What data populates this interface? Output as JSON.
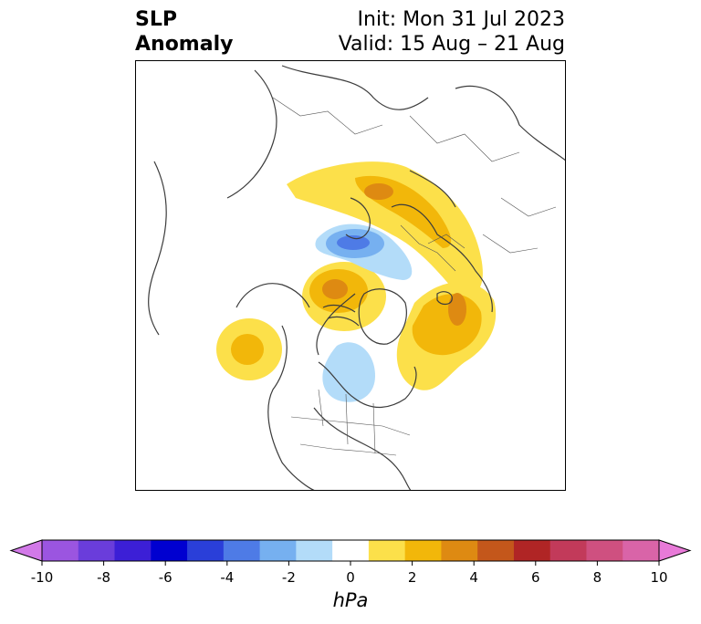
{
  "title": {
    "left_line1": "SLP",
    "left_line2": "Anomaly",
    "right_line1": "Init: Mon 31 Jul 2023",
    "right_line2": "Valid: 15 Aug – 21 Aug"
  },
  "colorbar": {
    "unit": "hPa",
    "ticks": [
      "-10",
      "-8",
      "-6",
      "-4",
      "-2",
      "0",
      "2",
      "4",
      "6",
      "8",
      "10"
    ],
    "colors": [
      "#d279e8",
      "#9b55e0",
      "#6a3ddb",
      "#3c1fd6",
      "#0000d0",
      "#2a3fd9",
      "#4e7be6",
      "#76b0f0",
      "#b3dcf9",
      "#ffffff",
      "#fce04a",
      "#f2b70a",
      "#de8a12",
      "#c4571b",
      "#b02525",
      "#c23a5a",
      "#cf5080",
      "#d964a8",
      "#e87ad8"
    ]
  },
  "anomalies": [
    {
      "name": "positive-europe-russia",
      "sign": "positive",
      "colors": [
        "#fce04a",
        "#f2b70a",
        "#de8a12"
      ]
    },
    {
      "name": "negative-barents",
      "sign": "negative",
      "colors": [
        "#b3dcf9",
        "#76b0f0",
        "#4e7be6"
      ]
    },
    {
      "name": "positive-arctic-center",
      "sign": "positive",
      "colors": [
        "#fce04a",
        "#f2b70a",
        "#de8a12"
      ]
    },
    {
      "name": "positive-greenland-atlantic",
      "sign": "positive",
      "colors": [
        "#fce04a",
        "#f2b70a",
        "#de8a12"
      ]
    },
    {
      "name": "positive-northeast-pacific",
      "sign": "positive",
      "colors": [
        "#fce04a",
        "#f2b70a"
      ]
    },
    {
      "name": "negative-central-canada",
      "sign": "negative",
      "colors": [
        "#b3dcf9"
      ]
    }
  ]
}
